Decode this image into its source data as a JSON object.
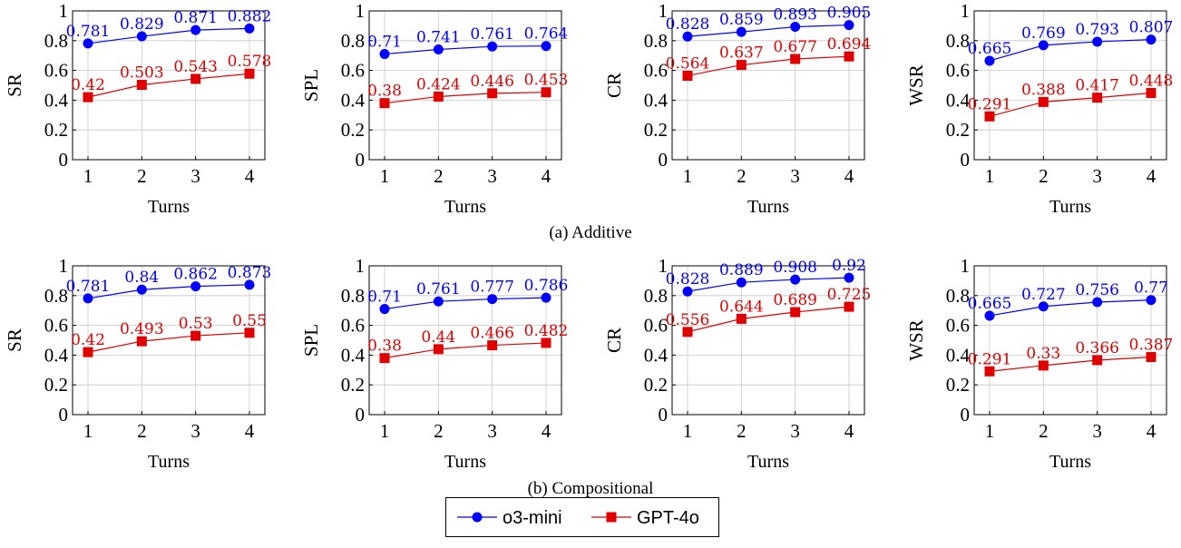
{
  "captions": {
    "row_a": "(a) Additive",
    "row_b": "(b) Compositional"
  },
  "legend": {
    "series": [
      {
        "name": "o3-mini",
        "color": "#0000ff",
        "marker": "circle"
      },
      {
        "name": "GPT-4o",
        "color": "#e00000",
        "marker": "square"
      }
    ]
  },
  "chart_data": [
    {
      "type": "line",
      "group": "Additive",
      "xlabel": "Turns",
      "ylabel": "SR",
      "x": [
        1,
        2,
        3,
        4
      ],
      "ylim": [
        0,
        1
      ],
      "yticks": [
        "0",
        "0.2",
        "0.4",
        "0.6",
        "0.8",
        "1"
      ],
      "grid": true,
      "series": [
        {
          "name": "o3-mini",
          "values": [
            0.781,
            0.829,
            0.871,
            0.882
          ],
          "labels": [
            "0.781",
            "0.829",
            "0.871",
            "0.882"
          ]
        },
        {
          "name": "GPT-4o",
          "values": [
            0.42,
            0.503,
            0.543,
            0.578
          ],
          "labels": [
            "0.42",
            "0.503",
            "0.543",
            "0.578"
          ]
        }
      ]
    },
    {
      "type": "line",
      "group": "Additive",
      "xlabel": "Turns",
      "ylabel": "SPL",
      "x": [
        1,
        2,
        3,
        4
      ],
      "ylim": [
        0,
        1
      ],
      "yticks": [
        "0",
        "0.2",
        "0.4",
        "0.6",
        "0.8",
        "1"
      ],
      "grid": true,
      "series": [
        {
          "name": "o3-mini",
          "values": [
            0.71,
            0.741,
            0.761,
            0.764
          ],
          "labels": [
            "0.71",
            "0.741",
            "0.761",
            "0.764"
          ]
        },
        {
          "name": "GPT-4o",
          "values": [
            0.38,
            0.424,
            0.446,
            0.453
          ],
          "labels": [
            "0.38",
            "0.424",
            "0.446",
            "0.453"
          ]
        }
      ]
    },
    {
      "type": "line",
      "group": "Additive",
      "xlabel": "Turns",
      "ylabel": "CR",
      "x": [
        1,
        2,
        3,
        4
      ],
      "ylim": [
        0,
        1
      ],
      "yticks": [
        "0",
        "0.2",
        "0.4",
        "0.6",
        "0.8",
        "1"
      ],
      "grid": true,
      "series": [
        {
          "name": "o3-mini",
          "values": [
            0.828,
            0.859,
            0.893,
            0.905
          ],
          "labels": [
            "0.828",
            "0.859",
            "0.893",
            "0.905"
          ]
        },
        {
          "name": "GPT-4o",
          "values": [
            0.564,
            0.637,
            0.677,
            0.694
          ],
          "labels": [
            "0.564",
            "0.637",
            "0.677",
            "0.694"
          ]
        }
      ]
    },
    {
      "type": "line",
      "group": "Additive",
      "xlabel": "Turns",
      "ylabel": "WSR",
      "x": [
        1,
        2,
        3,
        4
      ],
      "ylim": [
        0,
        1
      ],
      "yticks": [
        "0",
        "0.2",
        "0.4",
        "0.6",
        "0.8",
        "1"
      ],
      "grid": true,
      "series": [
        {
          "name": "o3-mini",
          "values": [
            0.665,
            0.769,
            0.793,
            0.807
          ],
          "labels": [
            "0.665",
            "0.769",
            "0.793",
            "0.807"
          ]
        },
        {
          "name": "GPT-4o",
          "values": [
            0.291,
            0.388,
            0.417,
            0.448
          ],
          "labels": [
            "0.291",
            "0.388",
            "0.417",
            "0.448"
          ]
        }
      ]
    },
    {
      "type": "line",
      "group": "Compositional",
      "xlabel": "Turns",
      "ylabel": "SR",
      "x": [
        1,
        2,
        3,
        4
      ],
      "ylim": [
        0,
        1
      ],
      "yticks": [
        "0",
        "0.2",
        "0.4",
        "0.6",
        "0.8",
        "1"
      ],
      "grid": true,
      "series": [
        {
          "name": "o3-mini",
          "values": [
            0.781,
            0.84,
            0.862,
            0.873
          ],
          "labels": [
            "0.781",
            "0.84",
            "0.862",
            "0.873"
          ]
        },
        {
          "name": "GPT-4o",
          "values": [
            0.42,
            0.493,
            0.53,
            0.55
          ],
          "labels": [
            "0.42",
            "0.493",
            "0.53",
            "0.55"
          ]
        }
      ]
    },
    {
      "type": "line",
      "group": "Compositional",
      "xlabel": "Turns",
      "ylabel": "SPL",
      "x": [
        1,
        2,
        3,
        4
      ],
      "ylim": [
        0,
        1
      ],
      "yticks": [
        "0",
        "0.2",
        "0.4",
        "0.6",
        "0.8",
        "1"
      ],
      "grid": true,
      "series": [
        {
          "name": "o3-mini",
          "values": [
            0.71,
            0.761,
            0.777,
            0.786
          ],
          "labels": [
            "0.71",
            "0.761",
            "0.777",
            "0.786"
          ]
        },
        {
          "name": "GPT-4o",
          "values": [
            0.38,
            0.44,
            0.466,
            0.482
          ],
          "labels": [
            "0.38",
            "0.44",
            "0.466",
            "0.482"
          ]
        }
      ]
    },
    {
      "type": "line",
      "group": "Compositional",
      "xlabel": "Turns",
      "ylabel": "CR",
      "x": [
        1,
        2,
        3,
        4
      ],
      "ylim": [
        0,
        1
      ],
      "yticks": [
        "0",
        "0.2",
        "0.4",
        "0.6",
        "0.8",
        "1"
      ],
      "grid": true,
      "series": [
        {
          "name": "o3-mini",
          "values": [
            0.828,
            0.889,
            0.908,
            0.92
          ],
          "labels": [
            "0.828",
            "0.889",
            "0.908",
            "0.92"
          ]
        },
        {
          "name": "GPT-4o",
          "values": [
            0.556,
            0.644,
            0.689,
            0.725
          ],
          "labels": [
            "0.556",
            "0.644",
            "0.689",
            "0.725"
          ]
        }
      ]
    },
    {
      "type": "line",
      "group": "Compositional",
      "xlabel": "Turns",
      "ylabel": "WSR",
      "x": [
        1,
        2,
        3,
        4
      ],
      "ylim": [
        0,
        1
      ],
      "yticks": [
        "0",
        "0.2",
        "0.4",
        "0.6",
        "0.8",
        "1"
      ],
      "grid": true,
      "series": [
        {
          "name": "o3-mini",
          "values": [
            0.665,
            0.727,
            0.756,
            0.77
          ],
          "labels": [
            "0.665",
            "0.727",
            "0.756",
            "0.77"
          ]
        },
        {
          "name": "GPT-4o",
          "values": [
            0.291,
            0.33,
            0.366,
            0.387
          ],
          "labels": [
            "0.291",
            "0.33",
            "0.366",
            "0.387"
          ]
        }
      ]
    }
  ]
}
